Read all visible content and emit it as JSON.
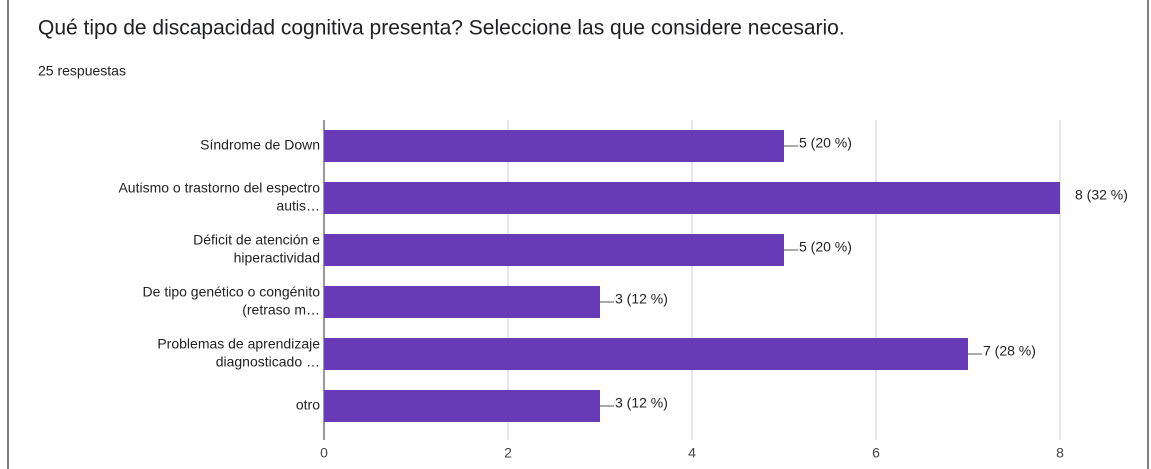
{
  "chart_data": {
    "type": "bar",
    "orientation": "horizontal",
    "title": "Qué tipo de discapacidad cognitiva presenta? Seleccione las que considere necesario.",
    "subtitle": "25 respuestas",
    "categories": [
      [
        "Síndrome de Down"
      ],
      [
        "Autismo o trastorno del espectro",
        "autis…"
      ],
      [
        "Déficit de atención e",
        "hiperactividad"
      ],
      [
        "De tipo genético o congénito",
        "(retraso m…"
      ],
      [
        "Problemas de aprendizaje",
        "diagnosticado …"
      ],
      [
        "otro"
      ]
    ],
    "values": [
      5,
      8,
      5,
      3,
      7,
      3
    ],
    "value_labels": [
      "5 (20 %)",
      "8 (32 %)",
      "5 (20 %)",
      "3 (12 %)",
      "7 (28 %)",
      "3 (12 %)"
    ],
    "color": "#673ab7",
    "xlim": [
      0,
      8
    ],
    "xticks": [
      0,
      2,
      4,
      6,
      8
    ],
    "grid": true
  }
}
